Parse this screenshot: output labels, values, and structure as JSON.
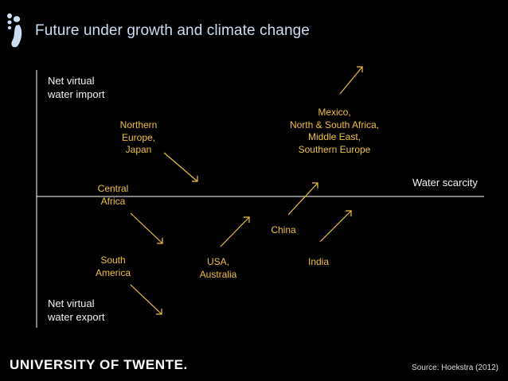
{
  "title": "Future under growth and climate change",
  "colors": {
    "title": "#c9def2",
    "region_label": "#f0c040",
    "axis": "#ffffff",
    "background": "#000000"
  },
  "icon": "footprint-icon",
  "axis": {
    "y_top": "Net virtual\nwater import",
    "y_bottom": "Net virtual\nwater export",
    "x": "Water scarcity"
  },
  "regions": {
    "northern_europe_japan": "Northern\nEurope,\nJapan",
    "mexico_group": "Mexico,\nNorth & South Africa,\nMiddle East,\nSouthern Europe",
    "central_africa": "Central\nAfrica",
    "china": "China",
    "south_america": "South\nAmerica",
    "usa_australia": "USA,\nAustralia",
    "india": "India"
  },
  "footer": {
    "logo": "UNIVERSITY OF TWENTE.",
    "source": "Source: Hoekstra (2012)"
  }
}
